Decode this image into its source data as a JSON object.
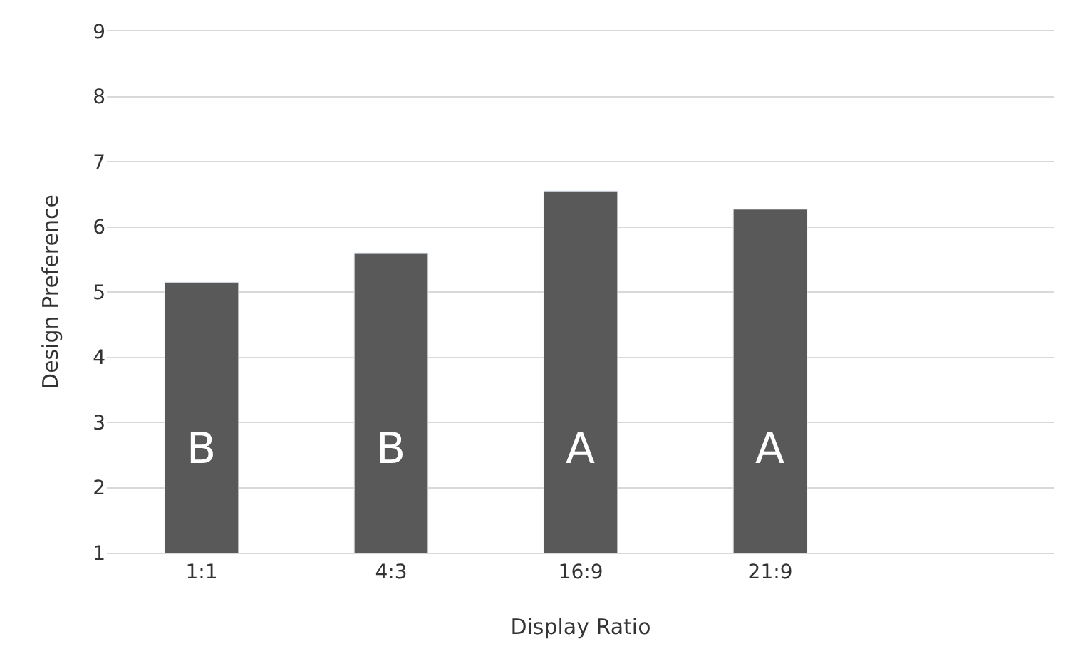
{
  "chart_data": {
    "type": "bar",
    "xlabel": "Display Ratio",
    "ylabel": "Design Preference",
    "categories": [
      "1:1",
      "4:3",
      "16:9",
      "21:9",
      null
    ],
    "values": [
      5.15,
      5.6,
      6.55,
      6.27,
      null
    ],
    "color": "#595959",
    "ylim": [
      1,
      9
    ],
    "yticks": [
      1,
      2,
      3,
      4,
      5,
      6,
      7,
      8,
      9
    ],
    "grid": "y",
    "legend": false,
    "annotations": [
      "B",
      "B",
      "A",
      "A"
    ]
  }
}
